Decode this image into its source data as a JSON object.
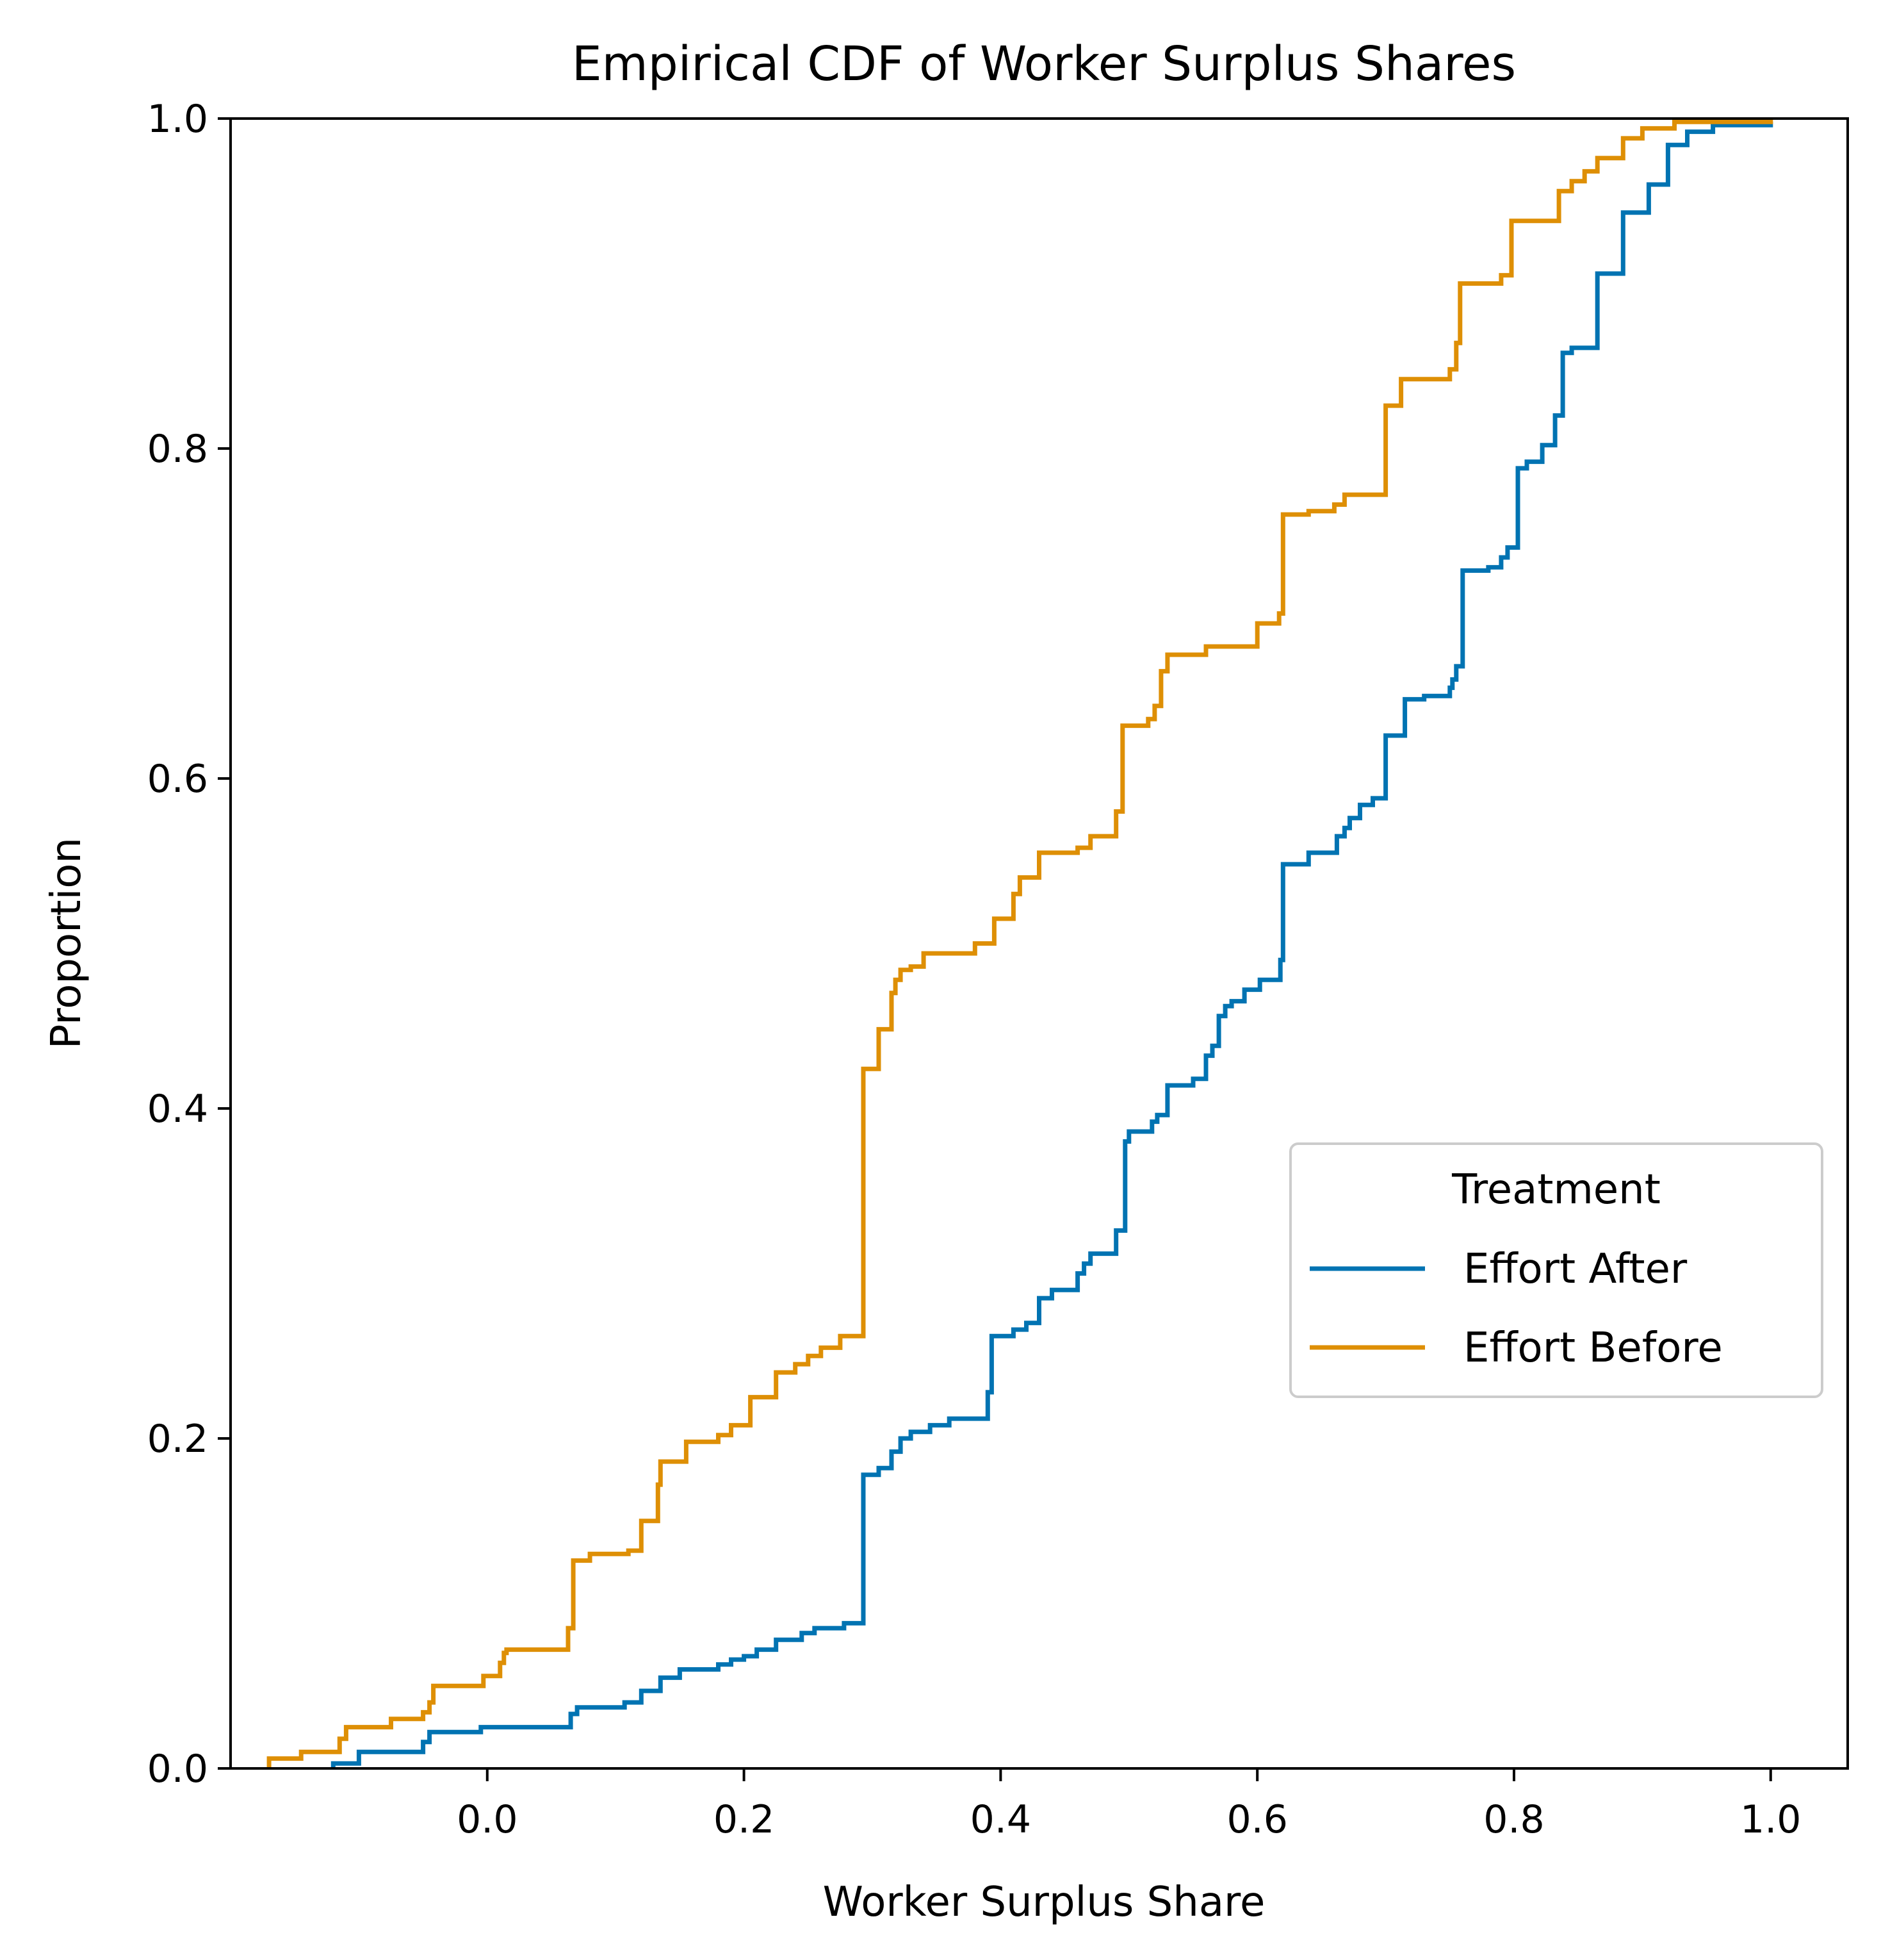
{
  "chart_data": {
    "type": "line",
    "subtype": "ecdf-step",
    "title": "Empirical CDF of Worker Surplus Shares",
    "xlabel": "Worker Surplus Share",
    "ylabel": "Proportion",
    "xlim": [
      -0.2,
      1.06
    ],
    "ylim": [
      0.0,
      1.0
    ],
    "xticks": [
      0.0,
      0.2,
      0.4,
      0.6,
      0.8,
      1.0
    ],
    "xtick_labels": [
      "0.0",
      "0.2",
      "0.4",
      "0.6",
      "0.8",
      "1.0"
    ],
    "yticks": [
      0.0,
      0.2,
      0.4,
      0.6,
      0.8,
      1.0
    ],
    "ytick_labels": [
      "0.0",
      "0.2",
      "0.4",
      "0.6",
      "0.8",
      "1.0"
    ],
    "grid": false,
    "legend": {
      "title": "Treatment",
      "placement": "center-right"
    },
    "series": [
      {
        "name": "Effort After",
        "color": "#0173b2",
        "points": [
          [
            -0.12,
            0.003
          ],
          [
            -0.1,
            0.01
          ],
          [
            -0.05,
            0.016
          ],
          [
            -0.045,
            0.022
          ],
          [
            -0.005,
            0.025
          ],
          [
            0.065,
            0.033
          ],
          [
            0.07,
            0.037
          ],
          [
            0.107,
            0.04
          ],
          [
            0.12,
            0.047
          ],
          [
            0.135,
            0.055
          ],
          [
            0.15,
            0.06
          ],
          [
            0.18,
            0.063
          ],
          [
            0.19,
            0.066
          ],
          [
            0.2,
            0.068
          ],
          [
            0.21,
            0.072
          ],
          [
            0.225,
            0.078
          ],
          [
            0.245,
            0.082
          ],
          [
            0.255,
            0.085
          ],
          [
            0.278,
            0.088
          ],
          [
            0.293,
            0.178
          ],
          [
            0.305,
            0.182
          ],
          [
            0.315,
            0.192
          ],
          [
            0.322,
            0.2
          ],
          [
            0.33,
            0.204
          ],
          [
            0.345,
            0.208
          ],
          [
            0.36,
            0.212
          ],
          [
            0.39,
            0.228
          ],
          [
            0.393,
            0.262
          ],
          [
            0.41,
            0.266
          ],
          [
            0.42,
            0.27
          ],
          [
            0.43,
            0.285
          ],
          [
            0.44,
            0.29
          ],
          [
            0.46,
            0.3
          ],
          [
            0.465,
            0.306
          ],
          [
            0.47,
            0.312
          ],
          [
            0.49,
            0.326
          ],
          [
            0.497,
            0.38
          ],
          [
            0.5,
            0.386
          ],
          [
            0.518,
            0.392
          ],
          [
            0.522,
            0.396
          ],
          [
            0.53,
            0.414
          ],
          [
            0.55,
            0.418
          ],
          [
            0.56,
            0.432
          ],
          [
            0.565,
            0.438
          ],
          [
            0.57,
            0.456
          ],
          [
            0.575,
            0.462
          ],
          [
            0.58,
            0.465
          ],
          [
            0.59,
            0.472
          ],
          [
            0.602,
            0.478
          ],
          [
            0.618,
            0.49
          ],
          [
            0.62,
            0.548
          ],
          [
            0.64,
            0.555
          ],
          [
            0.662,
            0.565
          ],
          [
            0.668,
            0.57
          ],
          [
            0.672,
            0.576
          ],
          [
            0.68,
            0.584
          ],
          [
            0.69,
            0.588
          ],
          [
            0.7,
            0.626
          ],
          [
            0.715,
            0.648
          ],
          [
            0.73,
            0.65
          ],
          [
            0.75,
            0.655
          ],
          [
            0.752,
            0.66
          ],
          [
            0.755,
            0.668
          ],
          [
            0.76,
            0.726
          ],
          [
            0.78,
            0.728
          ],
          [
            0.79,
            0.734
          ],
          [
            0.795,
            0.74
          ],
          [
            0.803,
            0.788
          ],
          [
            0.81,
            0.792
          ],
          [
            0.822,
            0.802
          ],
          [
            0.832,
            0.82
          ],
          [
            0.838,
            0.858
          ],
          [
            0.845,
            0.861
          ],
          [
            0.865,
            0.906
          ],
          [
            0.885,
            0.943
          ],
          [
            0.905,
            0.96
          ],
          [
            0.92,
            0.984
          ],
          [
            0.935,
            0.992
          ],
          [
            0.955,
            0.996
          ],
          [
            1.0,
            0.998
          ]
        ]
      },
      {
        "name": "Effort Before",
        "color": "#de8f05",
        "points": [
          [
            -0.17,
            0.006
          ],
          [
            -0.145,
            0.01
          ],
          [
            -0.115,
            0.018
          ],
          [
            -0.11,
            0.025
          ],
          [
            -0.075,
            0.03
          ],
          [
            -0.05,
            0.034
          ],
          [
            -0.045,
            0.04
          ],
          [
            -0.042,
            0.05
          ],
          [
            -0.003,
            0.056
          ],
          [
            0.01,
            0.064
          ],
          [
            0.013,
            0.07
          ],
          [
            0.015,
            0.072
          ],
          [
            0.063,
            0.085
          ],
          [
            0.067,
            0.126
          ],
          [
            0.08,
            0.13
          ],
          [
            0.11,
            0.132
          ],
          [
            0.12,
            0.15
          ],
          [
            0.133,
            0.172
          ],
          [
            0.135,
            0.186
          ],
          [
            0.155,
            0.198
          ],
          [
            0.18,
            0.202
          ],
          [
            0.19,
            0.208
          ],
          [
            0.205,
            0.225
          ],
          [
            0.225,
            0.24
          ],
          [
            0.24,
            0.245
          ],
          [
            0.25,
            0.25
          ],
          [
            0.26,
            0.255
          ],
          [
            0.275,
            0.262
          ],
          [
            0.293,
            0.424
          ],
          [
            0.305,
            0.448
          ],
          [
            0.315,
            0.47
          ],
          [
            0.318,
            0.478
          ],
          [
            0.322,
            0.484
          ],
          [
            0.33,
            0.486
          ],
          [
            0.34,
            0.494
          ],
          [
            0.38,
            0.5
          ],
          [
            0.395,
            0.515
          ],
          [
            0.41,
            0.53
          ],
          [
            0.415,
            0.54
          ],
          [
            0.43,
            0.555
          ],
          [
            0.46,
            0.558
          ],
          [
            0.47,
            0.565
          ],
          [
            0.49,
            0.58
          ],
          [
            0.495,
            0.632
          ],
          [
            0.515,
            0.636
          ],
          [
            0.52,
            0.644
          ],
          [
            0.525,
            0.665
          ],
          [
            0.53,
            0.675
          ],
          [
            0.56,
            0.68
          ],
          [
            0.6,
            0.694
          ],
          [
            0.617,
            0.7
          ],
          [
            0.62,
            0.76
          ],
          [
            0.64,
            0.762
          ],
          [
            0.66,
            0.766
          ],
          [
            0.668,
            0.772
          ],
          [
            0.7,
            0.826
          ],
          [
            0.712,
            0.842
          ],
          [
            0.75,
            0.848
          ],
          [
            0.755,
            0.864
          ],
          [
            0.758,
            0.9
          ],
          [
            0.79,
            0.905
          ],
          [
            0.798,
            0.938
          ],
          [
            0.835,
            0.956
          ],
          [
            0.845,
            0.962
          ],
          [
            0.855,
            0.968
          ],
          [
            0.865,
            0.976
          ],
          [
            0.885,
            0.988
          ],
          [
            0.9,
            0.994
          ],
          [
            0.925,
            0.998
          ],
          [
            1.0,
            1.0
          ]
        ]
      }
    ]
  }
}
